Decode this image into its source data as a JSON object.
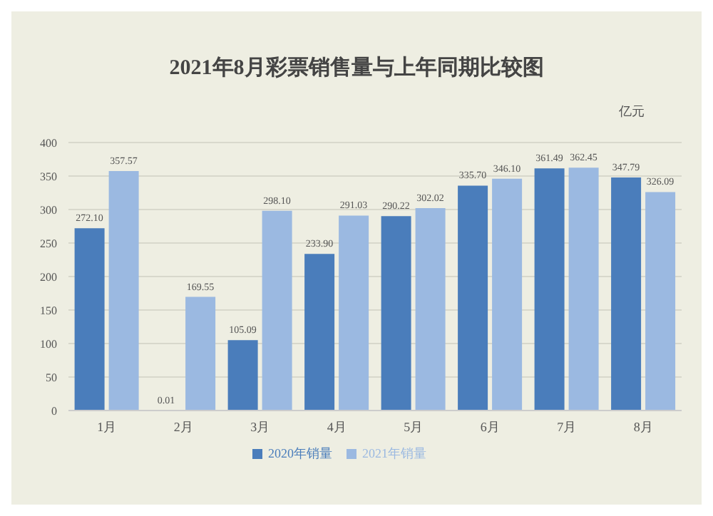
{
  "chart_data": {
    "type": "bar",
    "title": "2021年8月彩票销售量与上年同期比较图",
    "annotations": [
      "亿元"
    ],
    "categories": [
      "1月",
      "2月",
      "3月",
      "4月",
      "5月",
      "6月",
      "7月",
      "8月"
    ],
    "series": [
      {
        "name": "2020年销量",
        "color": "#4a7dbb",
        "values": [
          272.1,
          0.01,
          105.09,
          233.9,
          290.22,
          335.7,
          361.49,
          347.79
        ],
        "value_labels": [
          "272.10",
          "0.01",
          "105.09",
          "233.90",
          "290.22",
          "335.70",
          "361.49",
          "347.79"
        ]
      },
      {
        "name": "2021年销量",
        "color": "#9bb9e1",
        "values": [
          357.57,
          169.55,
          298.1,
          291.03,
          302.02,
          346.1,
          362.45,
          326.09
        ],
        "value_labels": [
          "357.57",
          "169.55",
          "298.10",
          "291.03",
          "302.02",
          "346.10",
          "362.45",
          "326.09"
        ]
      }
    ],
    "ylim": [
      0,
      400
    ],
    "yticks": [
      0,
      50,
      100,
      150,
      200,
      250,
      300,
      350,
      400
    ],
    "grid": "y",
    "legend": "bottom"
  }
}
